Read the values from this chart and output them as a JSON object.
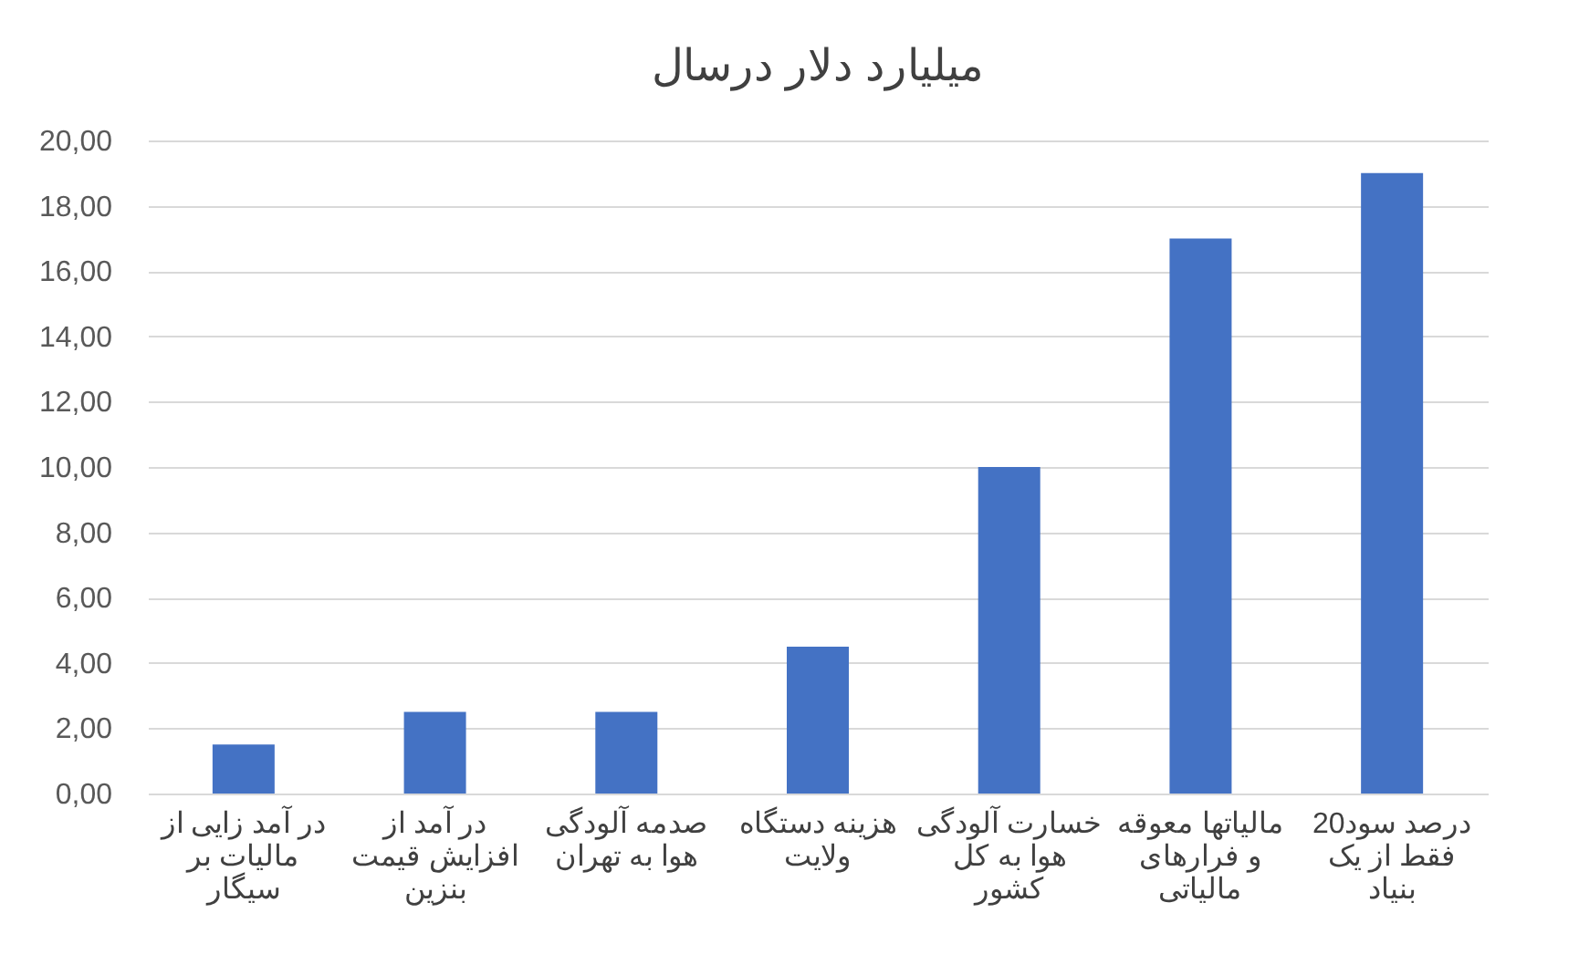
{
  "chart_data": {
    "type": "bar",
    "title": "میلیارد دلار درسال",
    "categories": [
      "در آمد زایی از\nمالیات بر\nسیگار",
      "در آمد  از\nافزایش قیمت\nبنزین",
      "صدمه آلودگی\nهوا به تهران",
      "هزینه دستگاه\nولایت",
      "خسارت آلودگی\nهوا به کل\nکشور",
      "مالیاتها معوقه\nو فرارهای\nمالیاتی",
      "20درصد سود\nفقط از یک\nبنیاد"
    ],
    "values": [
      1.5,
      2.5,
      2.5,
      4.5,
      10,
      17,
      19
    ],
    "color": "#4472c4",
    "ylim": [
      0,
      20
    ],
    "yticks": [
      {
        "value": 0,
        "label": "0,00"
      },
      {
        "value": 2,
        "label": "2,00"
      },
      {
        "value": 4,
        "label": "4,00"
      },
      {
        "value": 6,
        "label": "6,00"
      },
      {
        "value": 8,
        "label": "8,00"
      },
      {
        "value": 10,
        "label": "10,00"
      },
      {
        "value": 12,
        "label": "12,00"
      },
      {
        "value": 14,
        "label": "14,00"
      },
      {
        "value": 16,
        "label": "16,00"
      },
      {
        "value": 18,
        "label": "18,00"
      },
      {
        "value": 20,
        "label": "20,00"
      }
    ],
    "grid": "y"
  }
}
